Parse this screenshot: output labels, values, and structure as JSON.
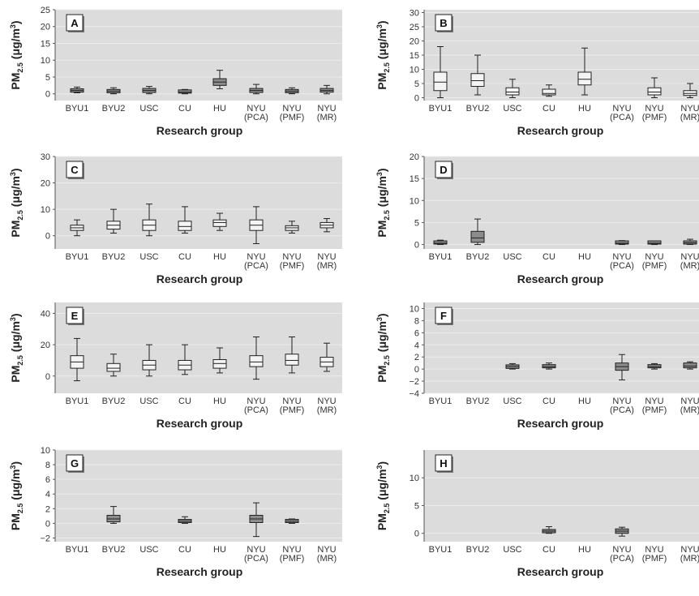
{
  "chart_data": [
    {
      "panel": "A",
      "type": "boxplot",
      "ylabel": "PM2.5 (μg/m3)",
      "xlabel": "Research group",
      "ylim": [
        -2,
        25
      ],
      "yticks": [
        0,
        5,
        10,
        15,
        20,
        25
      ],
      "categories": [
        "BYU1",
        "BYU2",
        "USC",
        "CU",
        "HU",
        "NYU (PCA)",
        "NYU (PMF)",
        "NYU (MR)"
      ],
      "boxes": [
        {
          "min": 0.3,
          "q1": 0.5,
          "median": 1.0,
          "q3": 1.5,
          "max": 2.0
        },
        {
          "min": 0.0,
          "q1": 0.3,
          "median": 0.8,
          "q3": 1.3,
          "max": 1.8
        },
        {
          "min": 0.0,
          "q1": 0.4,
          "median": 1.0,
          "q3": 1.6,
          "max": 2.2
        },
        {
          "min": 0.0,
          "q1": 0.2,
          "median": 0.5,
          "q3": 0.9,
          "max": 1.3
        },
        {
          "min": 1.5,
          "q1": 2.5,
          "median": 3.5,
          "q3": 4.5,
          "max": 7.0
        },
        {
          "min": 0.0,
          "q1": 0.4,
          "median": 1.0,
          "q3": 1.6,
          "max": 2.8
        },
        {
          "min": 0.0,
          "q1": 0.3,
          "median": 0.8,
          "q3": 1.3,
          "max": 1.8
        },
        {
          "min": 0.0,
          "q1": 0.5,
          "median": 1.0,
          "q3": 1.6,
          "max": 2.5
        }
      ]
    },
    {
      "panel": "B",
      "type": "boxplot",
      "ylabel": "PM2.5 (μg/m3)",
      "xlabel": "Research group",
      "ylim": [
        -1,
        31
      ],
      "yticks": [
        0,
        5,
        10,
        15,
        20,
        25,
        30
      ],
      "categories": [
        "BYU1",
        "BYU2",
        "USC",
        "CU",
        "HU",
        "NYU (PCA)",
        "NYU (PMF)",
        "NYU (MR)"
      ],
      "boxes": [
        {
          "min": 0.0,
          "q1": 2.5,
          "median": 5.5,
          "q3": 9.0,
          "max": 18.0
        },
        {
          "min": 1.0,
          "q1": 4.0,
          "median": 6.0,
          "q3": 8.5,
          "max": 15.0
        },
        {
          "min": 0.0,
          "q1": 1.0,
          "median": 2.0,
          "q3": 3.5,
          "max": 6.5
        },
        {
          "min": 0.5,
          "q1": 1.0,
          "median": 1.5,
          "q3": 3.0,
          "max": 4.5
        },
        {
          "min": 1.0,
          "q1": 4.5,
          "median": 6.5,
          "q3": 9.0,
          "max": 17.5
        },
        null,
        {
          "min": 0.0,
          "q1": 1.0,
          "median": 2.0,
          "q3": 3.5,
          "max": 7.0
        },
        {
          "min": 0.0,
          "q1": 0.8,
          "median": 1.5,
          "q3": 2.5,
          "max": 5.0
        }
      ]
    },
    {
      "panel": "C",
      "type": "boxplot",
      "ylabel": "PM2.5 (μg/m3)",
      "xlabel": "Research group",
      "ylim": [
        -5,
        30
      ],
      "yticks": [
        0,
        10,
        20,
        30
      ],
      "categories": [
        "BYU1",
        "BYU2",
        "USC",
        "CU",
        "HU",
        "NYU (PCA)",
        "NYU (PMF)",
        "NYU (MR)"
      ],
      "boxes": [
        {
          "min": 0.0,
          "q1": 2.0,
          "median": 3.0,
          "q3": 4.0,
          "max": 6.0
        },
        {
          "min": 1.0,
          "q1": 2.5,
          "median": 4.0,
          "q3": 5.5,
          "max": 10.0
        },
        {
          "min": 0.0,
          "q1": 2.0,
          "median": 4.0,
          "q3": 6.0,
          "max": 12.0
        },
        {
          "min": 1.0,
          "q1": 2.0,
          "median": 3.5,
          "q3": 5.5,
          "max": 11.0
        },
        {
          "min": 2.0,
          "q1": 3.5,
          "median": 5.0,
          "q3": 6.0,
          "max": 8.5
        },
        {
          "min": -3.0,
          "q1": 2.0,
          "median": 4.0,
          "q3": 6.0,
          "max": 11.0
        },
        {
          "min": 1.0,
          "q1": 2.0,
          "median": 3.0,
          "q3": 3.8,
          "max": 5.5
        },
        {
          "min": 1.5,
          "q1": 3.0,
          "median": 4.0,
          "q3": 5.0,
          "max": 6.5
        }
      ]
    },
    {
      "panel": "D",
      "type": "boxplot",
      "ylabel": "PM2.5 (μg/m3)",
      "xlabel": "Research group",
      "ylim": [
        -1,
        20
      ],
      "yticks": [
        0,
        5,
        10,
        15,
        20
      ],
      "categories": [
        "BYU1",
        "BYU2",
        "USC",
        "CU",
        "HU",
        "NYU (PCA)",
        "NYU (PMF)",
        "NYU (MR)"
      ],
      "boxes": [
        {
          "min": 0.0,
          "q1": 0.1,
          "median": 0.3,
          "q3": 0.6,
          "max": 1.0
        },
        {
          "min": 0.0,
          "q1": 0.5,
          "median": 1.5,
          "q3": 3.0,
          "max": 5.8
        },
        null,
        null,
        null,
        {
          "min": 0.0,
          "q1": 0.1,
          "median": 0.3,
          "q3": 0.6,
          "max": 0.9
        },
        {
          "min": 0.0,
          "q1": 0.1,
          "median": 0.3,
          "q3": 0.5,
          "max": 0.8
        },
        {
          "min": 0.0,
          "q1": 0.1,
          "median": 0.4,
          "q3": 0.8,
          "max": 1.2
        }
      ]
    },
    {
      "panel": "E",
      "type": "boxplot",
      "ylabel": "PM2.5 (μg/m3)",
      "xlabel": "Research group",
      "ylim": [
        -11,
        47
      ],
      "yticks": [
        0,
        20,
        40
      ],
      "categories": [
        "BYU1",
        "BYU2",
        "USC",
        "CU",
        "HU",
        "NYU (PCA)",
        "NYU (PMF)",
        "NYU (MR)"
      ],
      "boxes": [
        {
          "min": -3.0,
          "q1": 5.0,
          "median": 9.0,
          "q3": 13.0,
          "max": 24.0
        },
        {
          "min": 0.0,
          "q1": 3.0,
          "median": 5.0,
          "q3": 8.0,
          "max": 14.0
        },
        {
          "min": 0.0,
          "q1": 4.0,
          "median": 7.0,
          "q3": 10.0,
          "max": 20.0
        },
        {
          "min": 1.0,
          "q1": 4.0,
          "median": 7.0,
          "q3": 10.0,
          "max": 20.0
        },
        {
          "min": 2.0,
          "q1": 5.0,
          "median": 8.0,
          "q3": 10.5,
          "max": 18.0
        },
        {
          "min": -2.0,
          "q1": 6.0,
          "median": 9.0,
          "q3": 13.0,
          "max": 25.0
        },
        {
          "min": 2.0,
          "q1": 7.0,
          "median": 10.0,
          "q3": 14.0,
          "max": 25.0
        },
        {
          "min": 3.0,
          "q1": 6.0,
          "median": 9.0,
          "q3": 12.0,
          "max": 21.0
        }
      ]
    },
    {
      "panel": "F",
      "type": "boxplot",
      "ylabel": "PM2.5 (μg/m3)",
      "xlabel": "Research group",
      "ylim": [
        -4,
        11
      ],
      "yticks": [
        -4,
        -2,
        0,
        2,
        4,
        6,
        8,
        10
      ],
      "categories": [
        "BYU1",
        "BYU2",
        "USC",
        "CU",
        "HU",
        "NYU (PCA)",
        "NYU (PMF)",
        "NYU (MR)"
      ],
      "boxes": [
        null,
        null,
        {
          "min": 0.0,
          "q1": 0.1,
          "median": 0.4,
          "q3": 0.7,
          "max": 0.9
        },
        {
          "min": 0.0,
          "q1": 0.2,
          "median": 0.4,
          "q3": 0.7,
          "max": 1.0
        },
        null,
        {
          "min": -1.8,
          "q1": -0.2,
          "median": 0.4,
          "q3": 1.0,
          "max": 2.4
        },
        {
          "min": 0.0,
          "q1": 0.2,
          "median": 0.4,
          "q3": 0.7,
          "max": 0.9
        },
        {
          "min": 0.0,
          "q1": 0.2,
          "median": 0.5,
          "q3": 1.0,
          "max": 1.2
        }
      ]
    },
    {
      "panel": "G",
      "type": "boxplot",
      "ylabel": "PM2.5 (μg/m3)",
      "xlabel": "Research group",
      "ylim": [
        -2.5,
        10
      ],
      "yticks": [
        -2,
        0,
        2,
        4,
        6,
        8,
        10
      ],
      "categories": [
        "BYU1",
        "BYU2",
        "USC",
        "CU",
        "HU",
        "NYU (PCA)",
        "NYU (PMF)",
        "NYU (MR)"
      ],
      "boxes": [
        null,
        {
          "min": 0.0,
          "q1": 0.2,
          "median": 0.6,
          "q3": 1.1,
          "max": 2.3
        },
        null,
        {
          "min": 0.0,
          "q1": 0.1,
          "median": 0.3,
          "q3": 0.5,
          "max": 0.9
        },
        null,
        {
          "min": -1.8,
          "q1": 0.1,
          "median": 0.6,
          "q3": 1.1,
          "max": 2.8
        },
        {
          "min": 0.0,
          "q1": 0.1,
          "median": 0.3,
          "q3": 0.5,
          "max": 0.6
        },
        null
      ]
    },
    {
      "panel": "H",
      "type": "boxplot",
      "ylabel": "PM2.5 (μg/m3)",
      "xlabel": "Research group",
      "ylim": [
        -1.5,
        15
      ],
      "yticks": [
        0,
        5,
        10
      ],
      "categories": [
        "BYU1",
        "BYU2",
        "USC",
        "CU",
        "HU",
        "NYU (PCA)",
        "NYU (PMF)",
        "NYU (MR)"
      ],
      "boxes": [
        null,
        null,
        null,
        {
          "min": 0.0,
          "q1": 0.1,
          "median": 0.4,
          "q3": 0.7,
          "max": 1.2
        },
        null,
        {
          "min": -0.5,
          "q1": 0.0,
          "median": 0.4,
          "q3": 0.8,
          "max": 1.1
        },
        null,
        null
      ]
    }
  ]
}
